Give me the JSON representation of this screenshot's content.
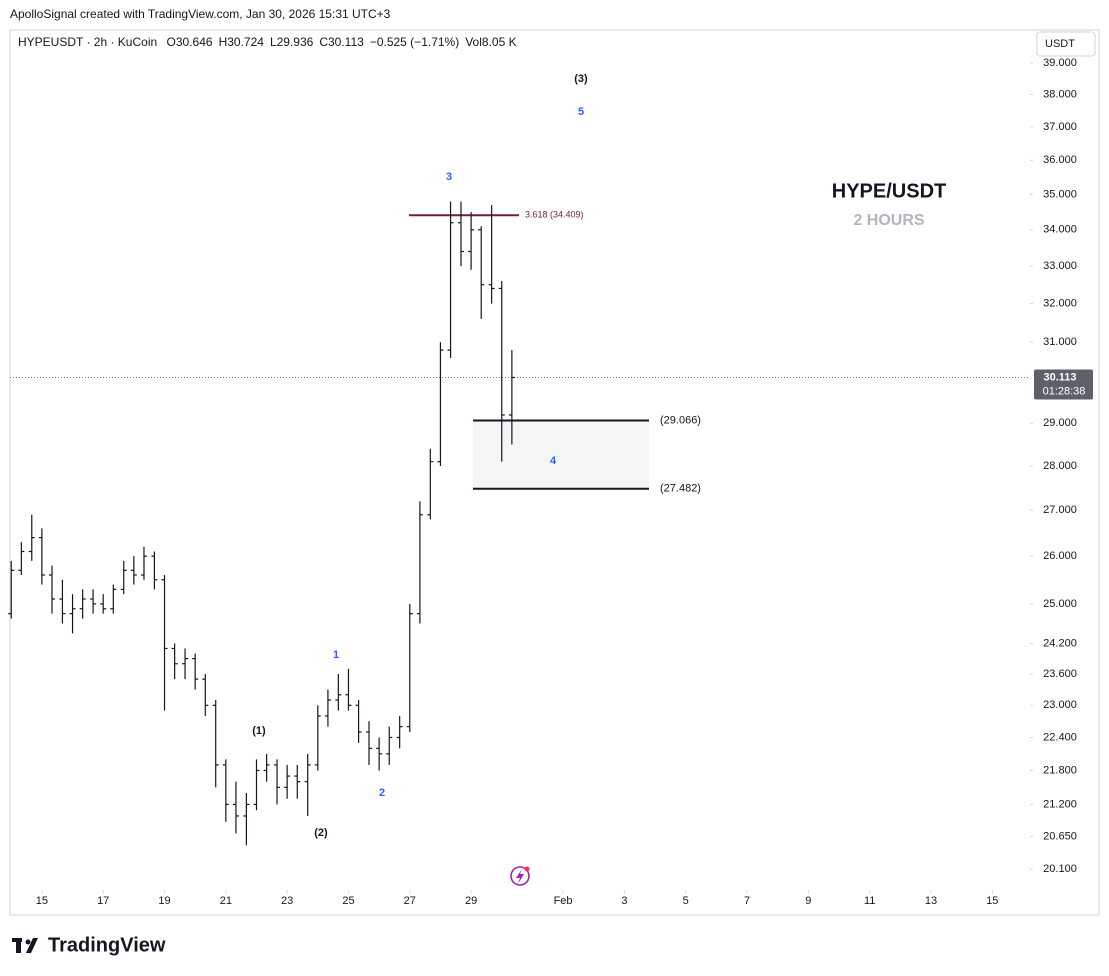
{
  "header": {
    "credit": "ApolloSignal created with TradingView.com, Jan 30, 2026 15:31 UTC+3"
  },
  "chart_data": {
    "type": "ohlc",
    "symbol": "HYPEUSDT · 2h · KuCoin",
    "ohlc_header": [
      {
        "key": "O",
        "value": "30.646"
      },
      {
        "key": "H",
        "value": "30.724"
      },
      {
        "key": "L",
        "value": "29.936"
      },
      {
        "key": "C",
        "value": "30.113"
      },
      {
        "key": "",
        "value": "−0.525 (−1.71%)"
      },
      {
        "key": "Vol",
        "value": "8.05 K"
      }
    ],
    "currency": "USDT",
    "watermark_title": "HYPE/USDT",
    "watermark_subtitle": "2 HOURS",
    "color": "#131722",
    "log_scale": true,
    "grid": false,
    "xlim": [
      13.96,
      47.23
    ],
    "ylim": [
      19.76,
      40.07
    ],
    "xticks": [
      15,
      17,
      19,
      21,
      23,
      25,
      27,
      29,
      {
        "value": 32,
        "label": "Feb"
      },
      {
        "value": 34,
        "label": "3"
      },
      {
        "value": 36,
        "label": "5"
      },
      {
        "value": 38,
        "label": "7"
      },
      {
        "value": 40,
        "label": "9"
      },
      {
        "value": 42,
        "label": "11"
      },
      {
        "value": 44,
        "label": "13"
      },
      {
        "value": 46,
        "label": "15"
      }
    ],
    "yticks": [
      {
        "value": 39,
        "label": "39.000"
      },
      {
        "value": 38,
        "label": "38.000"
      },
      {
        "value": 37,
        "label": "37.000"
      },
      {
        "value": 36,
        "label": "36.000"
      },
      {
        "value": 35,
        "label": "35.000"
      },
      {
        "value": 34,
        "label": "34.000"
      },
      {
        "value": 33,
        "label": "33.000"
      },
      {
        "value": 32,
        "label": "32.000"
      },
      {
        "value": 31,
        "label": "31.000"
      },
      {
        "value": 29,
        "label": "29.000"
      },
      {
        "value": 28,
        "label": "28.000"
      },
      {
        "value": 27,
        "label": "27.000"
      },
      {
        "value": 26,
        "label": "26.000"
      },
      {
        "value": 25,
        "label": "25.000"
      },
      {
        "value": 24.2,
        "label": "24.200"
      },
      {
        "value": 23.6,
        "label": "23.600"
      },
      {
        "value": 23,
        "label": "23.000"
      },
      {
        "value": 22.4,
        "label": "22.400"
      },
      {
        "value": 21.8,
        "label": "21.800"
      },
      {
        "value": 21.2,
        "label": "21.200"
      },
      {
        "value": 20.65,
        "label": "20.650"
      },
      {
        "value": 20.1,
        "label": "20.100"
      }
    ],
    "x": [
      14,
      14.33,
      14.67,
      15,
      15.33,
      15.67,
      16,
      16.33,
      16.67,
      17,
      17.33,
      17.67,
      18,
      18.33,
      18.67,
      19,
      19.33,
      19.67,
      20,
      20.33,
      20.67,
      21,
      21.33,
      21.67,
      22,
      22.33,
      22.67,
      23,
      23.33,
      23.67,
      24,
      24.33,
      24.67,
      25,
      25.33,
      25.67,
      26,
      26.33,
      26.67,
      27,
      27.33,
      27.67,
      28,
      28.33,
      28.67,
      29,
      29.33,
      29.67,
      30,
      30.33
    ],
    "open": [
      24.8,
      25.7,
      26.1,
      26.4,
      25.6,
      25.1,
      24.8,
      24.9,
      25.1,
      25.0,
      24.9,
      25.3,
      25.7,
      25.6,
      26.0,
      25.5,
      24.1,
      23.8,
      23.9,
      23.5,
      23.0,
      21.9,
      21.2,
      21.0,
      21.2,
      21.8,
      21.9,
      21.5,
      21.7,
      21.6,
      21.9,
      22.8,
      23.1,
      23.2,
      23.0,
      22.5,
      22.2,
      22.1,
      22.4,
      22.6,
      24.8,
      26.9,
      28.1,
      30.8,
      34.2,
      33.4,
      34.0,
      32.5,
      32.4,
      29.2
    ],
    "high": [
      25.9,
      26.3,
      26.9,
      26.6,
      25.8,
      25.5,
      25.2,
      25.3,
      25.3,
      25.2,
      25.4,
      25.9,
      26.0,
      26.2,
      26.1,
      25.6,
      24.2,
      24.1,
      24.0,
      23.6,
      23.1,
      22.0,
      21.6,
      21.4,
      22.0,
      22.1,
      22.0,
      21.9,
      21.9,
      22.1,
      23.0,
      23.3,
      23.6,
      23.7,
      23.1,
      22.7,
      22.4,
      22.6,
      22.8,
      25.0,
      27.2,
      28.4,
      31.0,
      34.8,
      34.8,
      34.5,
      34.1,
      34.7,
      32.6,
      30.8
    ],
    "low": [
      24.7,
      25.6,
      25.9,
      25.4,
      24.8,
      24.6,
      24.4,
      24.7,
      24.8,
      24.8,
      24.8,
      25.2,
      25.4,
      25.5,
      25.3,
      22.9,
      23.5,
      23.5,
      23.3,
      22.8,
      21.5,
      20.9,
      20.7,
      20.5,
      21.1,
      21.6,
      21.2,
      21.3,
      21.3,
      21.0,
      21.8,
      22.6,
      22.9,
      22.9,
      22.3,
      21.9,
      21.8,
      21.9,
      22.2,
      22.5,
      24.6,
      26.8,
      28.0,
      30.6,
      33.0,
      32.9,
      31.6,
      32.0,
      28.1,
      28.5
    ],
    "close": [
      25.7,
      26.1,
      26.4,
      25.6,
      25.1,
      24.8,
      24.9,
      25.1,
      25.0,
      24.9,
      25.3,
      25.7,
      25.6,
      26.0,
      25.5,
      24.1,
      23.8,
      23.9,
      23.5,
      23.0,
      21.9,
      21.2,
      21.0,
      21.2,
      21.8,
      21.9,
      21.5,
      21.7,
      21.6,
      21.9,
      22.8,
      23.1,
      23.2,
      23.0,
      22.5,
      22.2,
      22.1,
      22.4,
      22.6,
      24.8,
      26.9,
      28.1,
      30.8,
      34.2,
      33.4,
      34.0,
      32.5,
      32.4,
      29.2,
      30.113
    ],
    "last_price": {
      "value": 30.113,
      "label": "30.113"
    },
    "countdown": "01:28:38",
    "levels": [
      {
        "value": 34.409,
        "label": "3.618 (34.409)",
        "color": "#7b1c2a"
      },
      {
        "value": 29.066,
        "label": "(29.066)",
        "color": "#131722"
      },
      {
        "value": 27.482,
        "label": "(27.482)",
        "color": "#131722"
      }
    ],
    "annotations": [
      {
        "text": "(3)",
        "color": "#131722"
      },
      {
        "text": "5",
        "color": "#2962ff"
      },
      {
        "text": "3",
        "color": "#2962ff"
      },
      {
        "text": "1",
        "color": "#2962ff"
      },
      {
        "text": "(1)",
        "color": "#131722"
      },
      {
        "text": "2",
        "color": "#2962ff"
      },
      {
        "text": "(2)",
        "color": "#131722"
      },
      {
        "text": "4",
        "color": "#2962ff"
      }
    ]
  },
  "footer": {
    "logo": "TradingView"
  }
}
